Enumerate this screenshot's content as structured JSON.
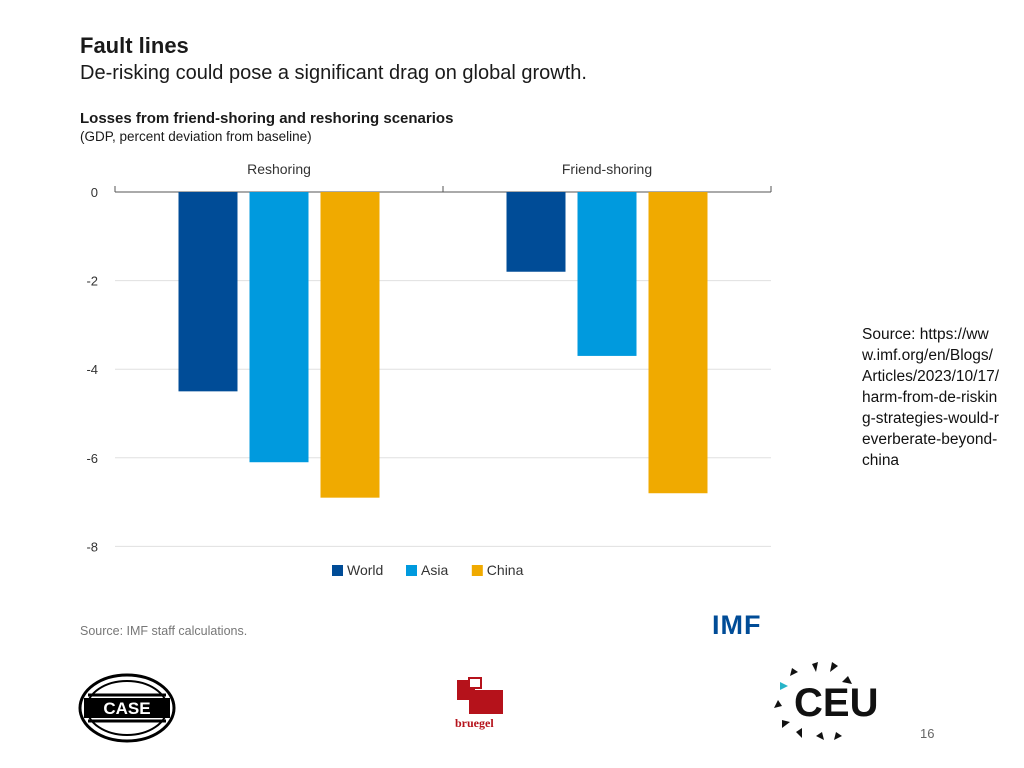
{
  "header": {
    "title": "Fault lines",
    "subtitle": "De-risking could pose a significant drag on global growth."
  },
  "chart_data": {
    "type": "bar",
    "title": "Losses from friend-shoring and reshoring scenarios",
    "subtitle": "(GDP, percent deviation from baseline)",
    "categories": [
      "Reshoring",
      "Friend-shoring"
    ],
    "series": [
      {
        "name": "World",
        "color": "#004c97",
        "values": [
          -4.5,
          -1.8
        ]
      },
      {
        "name": "Asia",
        "color": "#009ade",
        "values": [
          -6.1,
          -3.7
        ]
      },
      {
        "name": "China",
        "color": "#f0aa00",
        "values": [
          -6.9,
          -6.8
        ]
      }
    ],
    "ylim": [
      -8,
      0
    ],
    "yticks": [
      0,
      -2,
      -4,
      -6,
      -8
    ],
    "ytick_labels": [
      "0",
      "-2",
      "-4",
      "-6",
      "-8"
    ],
    "grid": true,
    "legend": "bottom-center",
    "source": "Source: IMF staff calculations."
  },
  "side_source": "Source: https://www.imf.org/en/Blogs/Articles/2023/10/17/harm-from-de-risking-strategies-would-reverberate-beyond-china",
  "logos": {
    "imf": "IMF",
    "case": "CASE",
    "bruegel": "bruegel",
    "ceu": "CEU"
  },
  "page_number": "16"
}
